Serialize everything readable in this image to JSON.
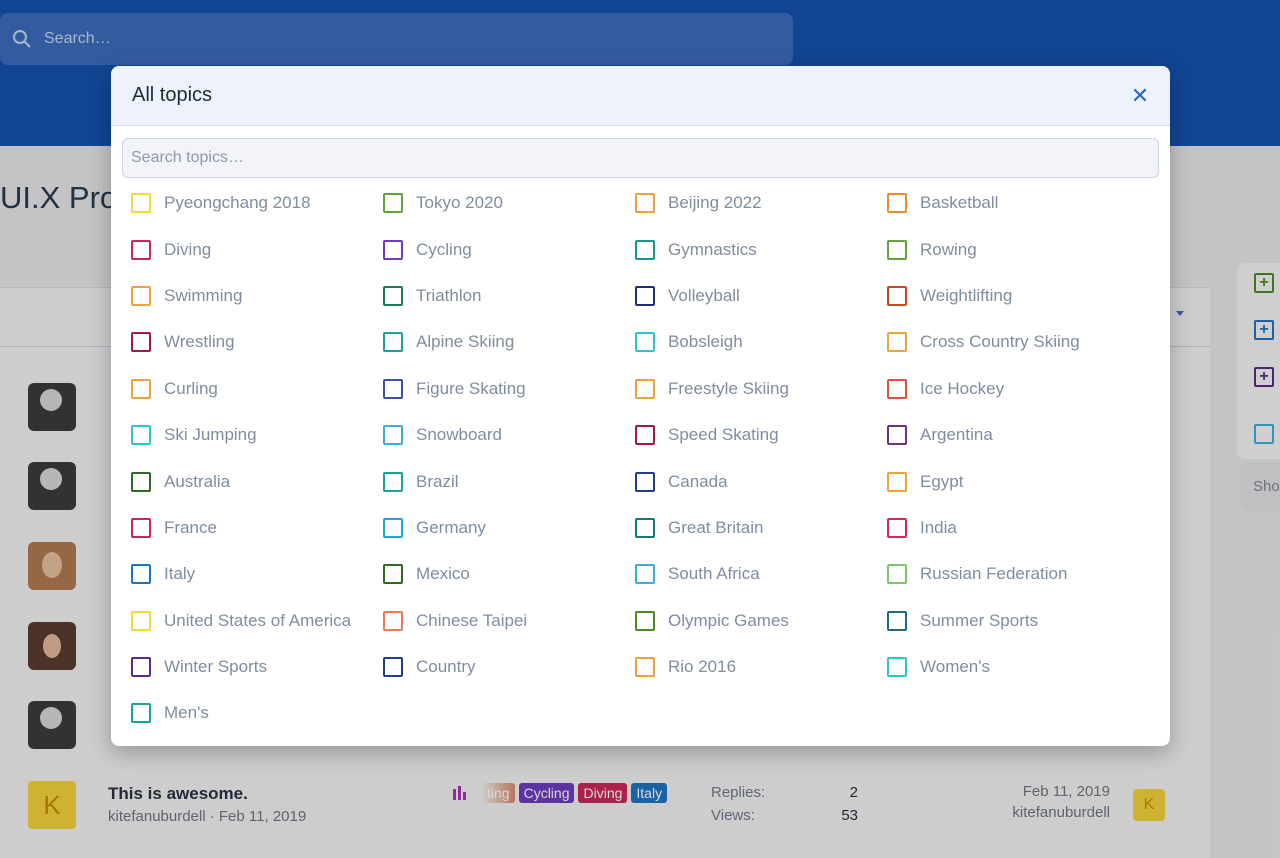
{
  "header": {
    "search_placeholder": "Search…"
  },
  "page_title": "UI.X Pro",
  "row": {
    "title": "This is awesome.",
    "meta": "kitefanuburdell · Feb 11, 2019",
    "avatar_letter": "K",
    "tags": [
      {
        "label": "ting",
        "color": "#d98a6a"
      },
      {
        "label": "Cycling",
        "color": "#6d3cbf"
      },
      {
        "label": "Diving",
        "color": "#c9275a"
      },
      {
        "label": "Italy",
        "color": "#1f74c4"
      }
    ],
    "replies_label": "Replies:",
    "replies": "2",
    "views_label": "Views:",
    "views": "53",
    "last_date": "Feb 11, 2019",
    "last_user": "kitefanuburdell"
  },
  "side_panel": {
    "show_label": "Sho"
  },
  "modal": {
    "title": "All topics",
    "close_icon": "close-icon",
    "search_placeholder": "Search topics…",
    "topics": [
      {
        "label": "Pyeongchang 2018",
        "color": "#f5d83a"
      },
      {
        "label": "Tokyo 2020",
        "color": "#5fa33b"
      },
      {
        "label": "Beijing 2022",
        "color": "#f0a23a"
      },
      {
        "label": "Basketball",
        "color": "#ec8a2e"
      },
      {
        "label": "Diving",
        "color": "#c9275a"
      },
      {
        "label": "Cycling",
        "color": "#6d3cbf"
      },
      {
        "label": "Gymnastics",
        "color": "#139a8f"
      },
      {
        "label": "Rowing",
        "color": "#5fa33b"
      },
      {
        "label": "Swimming",
        "color": "#f0a23a"
      },
      {
        "label": "Triathlon",
        "color": "#1a7a5e"
      },
      {
        "label": "Volleyball",
        "color": "#1f2d7a"
      },
      {
        "label": "Weightlifting",
        "color": "#c44a22"
      },
      {
        "label": "Wrestling",
        "color": "#a8174a"
      },
      {
        "label": "Alpine Skiing",
        "color": "#17a39a"
      },
      {
        "label": "Bobsleigh",
        "color": "#2ec4d0"
      },
      {
        "label": "Cross Country Skiing",
        "color": "#f0a23a"
      },
      {
        "label": "Curling",
        "color": "#f0a23a"
      },
      {
        "label": "Figure Skating",
        "color": "#3a4fa8"
      },
      {
        "label": "Freestyle Skiing",
        "color": "#f0a23a"
      },
      {
        "label": "Ice Hockey",
        "color": "#e0503c"
      },
      {
        "label": "Ski Jumping",
        "color": "#2ec4d0"
      },
      {
        "label": "Snowboard",
        "color": "#3ab0d9"
      },
      {
        "label": "Speed Skating",
        "color": "#a8174a"
      },
      {
        "label": "Argentina",
        "color": "#6d2f8c"
      },
      {
        "label": "Australia",
        "color": "#2f6b1f"
      },
      {
        "label": "Brazil",
        "color": "#17a39a"
      },
      {
        "label": "Canada",
        "color": "#1f3f8a"
      },
      {
        "label": "Egypt",
        "color": "#f0a23a"
      },
      {
        "label": "France",
        "color": "#c9275a"
      },
      {
        "label": "Germany",
        "color": "#1fa6d0"
      },
      {
        "label": "Great Britain",
        "color": "#137a74"
      },
      {
        "label": "India",
        "color": "#d62a56"
      },
      {
        "label": "Italy",
        "color": "#1f74c4"
      },
      {
        "label": "Mexico",
        "color": "#2f6b1f"
      },
      {
        "label": "South Africa",
        "color": "#3ab0d9"
      },
      {
        "label": "Russian Federation",
        "color": "#7cc66a"
      },
      {
        "label": "United States of America",
        "color": "#f5d83a"
      },
      {
        "label": "Chinese Taipei",
        "color": "#ee7a55"
      },
      {
        "label": "Olympic Games",
        "color": "#4f8a1f"
      },
      {
        "label": "Summer Sports",
        "color": "#1f6a8a"
      },
      {
        "label": "Winter Sports",
        "color": "#5b2a8c"
      },
      {
        "label": "Country",
        "color": "#1f3f8a"
      },
      {
        "label": "Rio 2016",
        "color": "#f0a23a"
      },
      {
        "label": "Women's",
        "color": "#2ec4d0"
      },
      {
        "label": "Men's",
        "color": "#17a39a"
      }
    ]
  }
}
